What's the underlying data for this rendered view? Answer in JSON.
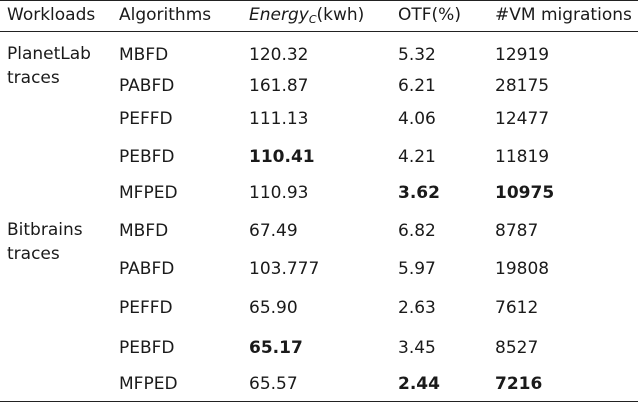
{
  "table": {
    "headers": {
      "workloads": "Workloads",
      "algorithms": "Algorithms",
      "energy_main": "Energy",
      "energy_sub": "C",
      "energy_unit": "(kwh)",
      "otf": "OTF(%)",
      "migrations": "#VM migrations"
    },
    "groups": [
      {
        "workload": "PlanetLab traces",
        "rows": [
          {
            "algorithm": "MBFD",
            "energy": "120.32",
            "otf": "5.32",
            "migrations": "12919",
            "bold": []
          },
          {
            "algorithm": "PABFD",
            "energy": "161.87",
            "otf": "6.21",
            "migrations": "28175",
            "bold": []
          },
          {
            "algorithm": "PEFFD",
            "energy": "111.13",
            "otf": "4.06",
            "migrations": "12477",
            "bold": []
          },
          {
            "algorithm": "PEBFD",
            "energy": "110.41",
            "otf": "4.21",
            "migrations": "11819",
            "bold": [
              "energy"
            ]
          },
          {
            "algorithm": "MFPED",
            "energy": "110.93",
            "otf": "3.62",
            "migrations": "10975",
            "bold": [
              "otf",
              "migrations"
            ]
          }
        ]
      },
      {
        "workload": "Bitbrains traces",
        "rows": [
          {
            "algorithm": "MBFD",
            "energy": "67.49",
            "otf": "6.82",
            "migrations": "8787",
            "bold": []
          },
          {
            "algorithm": "PABFD",
            "energy": "103.777",
            "otf": "5.97",
            "migrations": "19808",
            "bold": []
          },
          {
            "algorithm": "PEFFD",
            "energy": "65.90",
            "otf": "2.63",
            "migrations": "7612",
            "bold": []
          },
          {
            "algorithm": "PEBFD",
            "energy": "65.17",
            "otf": "3.45",
            "migrations": "8527",
            "bold": [
              "energy"
            ]
          },
          {
            "algorithm": "MFPED",
            "energy": "65.57",
            "otf": "2.44",
            "migrations": "7216",
            "bold": [
              "otf",
              "migrations"
            ]
          }
        ]
      }
    ]
  }
}
